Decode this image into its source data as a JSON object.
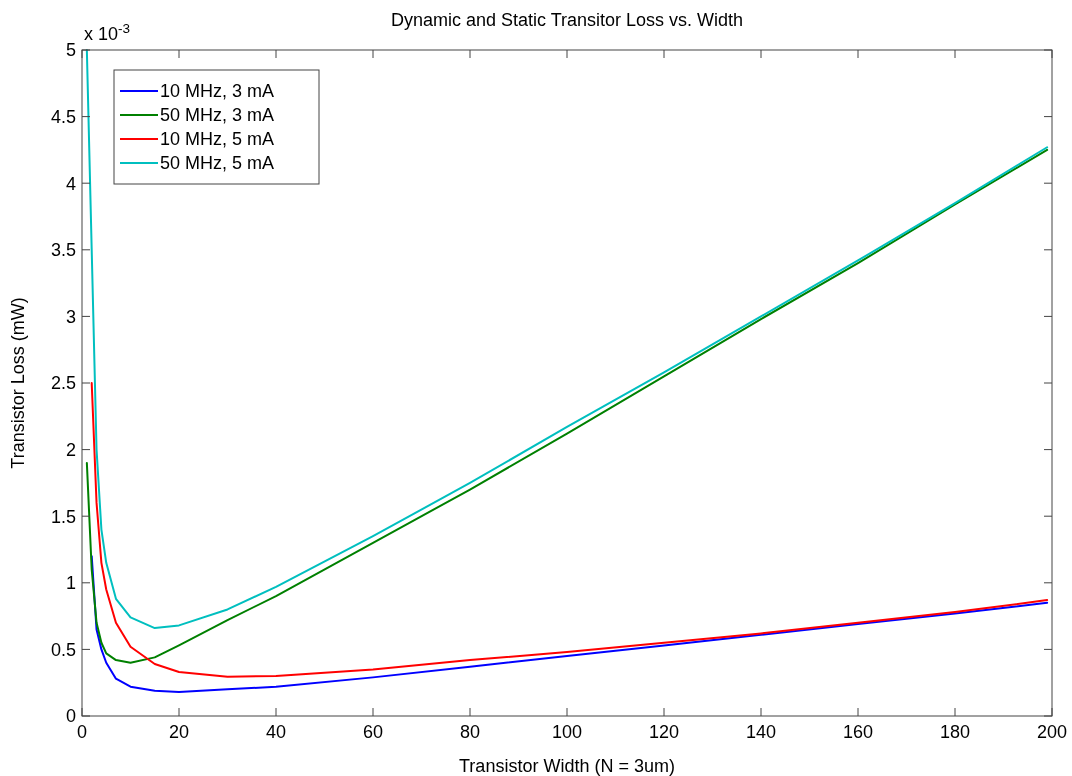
{
  "chart_data": {
    "type": "line",
    "title": "Dynamic and Static Transitor Loss vs. Width",
    "xlabel": "Transistor Width (N = 3um)",
    "ylabel": "Transistor Loss (mW)",
    "annotations": [
      "x 10$^{-3}$"
    ],
    "x": [
      1,
      2,
      3,
      4,
      5,
      7,
      10,
      15,
      20,
      30,
      40,
      60,
      80,
      100,
      120,
      140,
      160,
      180,
      199
    ],
    "series": [
      {
        "name": "10 MHz, 3 mA",
        "color": "#0000ff",
        "values": [
          null,
          1.2,
          0.65,
          0.5,
          0.4,
          0.28,
          0.22,
          0.19,
          0.18,
          0.2,
          0.22,
          0.29,
          0.37,
          0.45,
          0.53,
          0.61,
          0.69,
          0.77,
          0.85
        ]
      },
      {
        "name": "50 MHz, 3 mA",
        "color": "#008000",
        "values": [
          1.9,
          1.1,
          0.7,
          0.55,
          0.47,
          0.42,
          0.4,
          0.44,
          0.53,
          0.72,
          0.9,
          1.3,
          1.7,
          2.12,
          2.55,
          2.98,
          3.4,
          3.84,
          4.25
        ]
      },
      {
        "name": "10 MHz, 5 mA",
        "color": "#ff0000",
        "values": [
          null,
          2.5,
          1.6,
          1.15,
          0.95,
          0.7,
          0.52,
          0.39,
          0.33,
          0.295,
          0.3,
          0.35,
          0.42,
          0.48,
          0.55,
          0.62,
          0.7,
          0.78,
          0.87
        ]
      },
      {
        "name": "50 MHz, 5 mA",
        "color": "#00bfbf",
        "values": [
          5.0,
          3.5,
          2.0,
          1.4,
          1.15,
          0.88,
          0.74,
          0.66,
          0.68,
          0.8,
          0.97,
          1.35,
          1.75,
          2.17,
          2.58,
          3.0,
          3.42,
          3.85,
          4.27
        ]
      }
    ],
    "xlim": [
      0,
      200
    ],
    "xticks": [
      0,
      20,
      40,
      60,
      80,
      100,
      120,
      140,
      160,
      180,
      200
    ],
    "ylim": [
      0,
      5
    ],
    "yticks": [
      0,
      0.5,
      1,
      1.5,
      2,
      2.5,
      3,
      3.5,
      4,
      4.5,
      5
    ],
    "grid": false,
    "legend": "top left",
    "marker": "none",
    "line_style": "solid"
  }
}
